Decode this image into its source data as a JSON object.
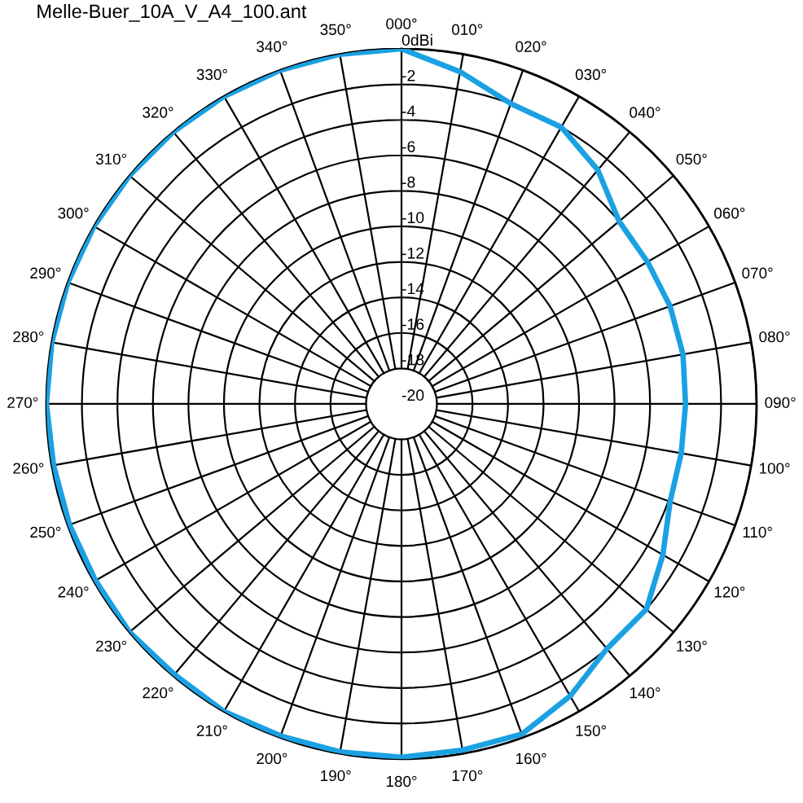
{
  "chart_data": {
    "type": "radar",
    "title": "Melle-Buer_10A_V_A4_100.ant",
    "categories": [
      "000°",
      "010°",
      "020°",
      "030°",
      "040°",
      "050°",
      "060°",
      "070°",
      "080°",
      "090°",
      "100°",
      "110°",
      "120°",
      "130°",
      "140°",
      "150°",
      "160°",
      "170°",
      "180°",
      "190°",
      "200°",
      "210°",
      "220°",
      "230°",
      "240°",
      "250°",
      "260°",
      "270°",
      "280°",
      "290°",
      "300°",
      "310°",
      "320°",
      "330°",
      "340°",
      "350°"
    ],
    "series": [
      {
        "color": "#1ba1e2",
        "values": [
          0,
          -1.0,
          -2.0,
          -2.0,
          -2.8,
          -4.0,
          -4.0,
          -3.9,
          -3.9,
          -4.0,
          -4.0,
          -3.9,
          -3.0,
          -2.0,
          -2.0,
          -1.0,
          -0.2,
          -0.2,
          -0.1,
          -0.1,
          -0.1,
          0,
          -0.1,
          0,
          -0.1,
          -0.1,
          -0.1,
          0,
          0,
          0,
          0,
          0,
          0,
          0,
          0,
          0
        ]
      }
    ],
    "ylim": [
      -20,
      0
    ],
    "yticks": [
      {
        "value": 0,
        "label": "0dBi"
      },
      -2,
      -4,
      -6,
      -8,
      -10,
      -12,
      -14,
      -16,
      -18,
      -20
    ],
    "grid": true
  }
}
